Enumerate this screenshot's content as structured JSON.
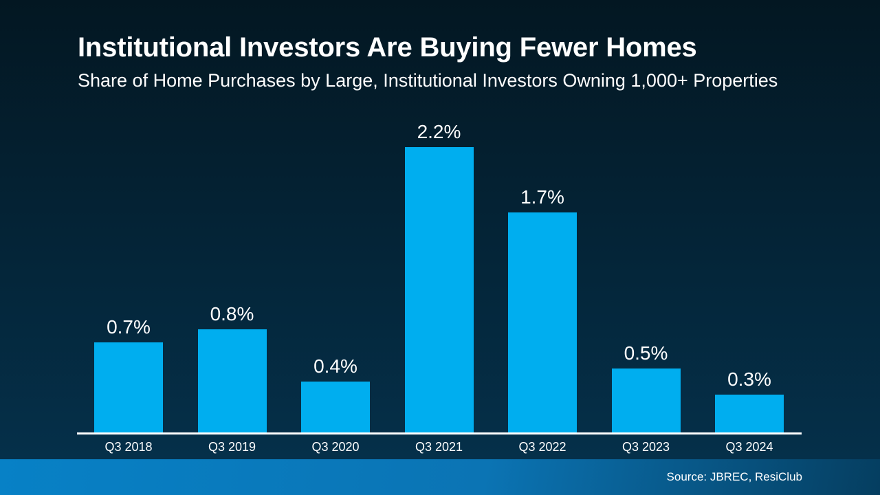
{
  "slide": {
    "title": "Institutional Investors Are Buying Fewer Homes",
    "subtitle": "Share of Home Purchases by Large, Institutional Investors Owning 1,000+ Properties",
    "source": "Source: JBREC, ResiClub"
  },
  "colors": {
    "background_top": "#031722",
    "background_bottom": "#05304A",
    "bar": "#00AEEF",
    "axis": "#FFFFFF",
    "text": "#FFFFFF",
    "footer_gradient_left": "#0781C6",
    "footer_gradient_mid": "#0B74B4",
    "footer_gradient_right": "#053E60"
  },
  "chart_data": {
    "type": "bar",
    "title": "Institutional Investors Are Buying Fewer Homes",
    "subtitle": "Share of Home Purchases by Large, Institutional Investors Owning 1,000+ Properties",
    "categories": [
      "Q3 2018",
      "Q3 2019",
      "Q3 2020",
      "Q3 2021",
      "Q3 2022",
      "Q3 2023",
      "Q3 2024"
    ],
    "values": [
      0.7,
      0.8,
      0.4,
      2.2,
      1.7,
      0.5,
      0.3
    ],
    "value_labels": [
      "0.7%",
      "0.8%",
      "0.4%",
      "2.2%",
      "1.7%",
      "0.5%",
      "0.3%"
    ],
    "xlabel": "",
    "ylabel": "",
    "ylim": [
      0,
      2.4
    ],
    "grid": false,
    "legend": false,
    "source": "Source: JBREC, ResiClub"
  }
}
